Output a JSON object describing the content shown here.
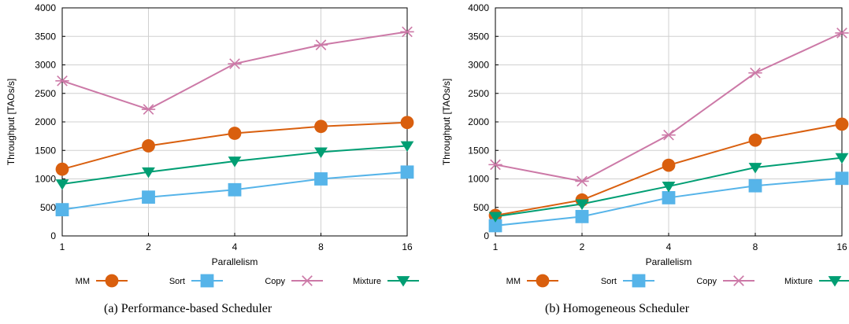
{
  "charts": [
    {
      "caption": "(a)  Performance-based Scheduler",
      "chart_data": {
        "type": "line",
        "title": "",
        "xlabel": "Parallelism",
        "ylabel": "Throughput [TAOs/s]",
        "x": [
          "1",
          "2",
          "4",
          "8",
          "16"
        ],
        "ylim": [
          0,
          4000
        ],
        "yticks": [
          0,
          500,
          1000,
          1500,
          2000,
          2500,
          3000,
          3500,
          4000
        ],
        "grid": true,
        "legend": "bottom",
        "series": [
          {
            "name": "MM",
            "marker": "circle",
            "color": "#d95f0e",
            "values": [
              1170,
              1580,
              1800,
              1920,
              1990
            ]
          },
          {
            "name": "Sort",
            "marker": "square",
            "color": "#56b4e9",
            "values": [
              460,
              680,
              810,
              1000,
              1120
            ]
          },
          {
            "name": "Copy",
            "marker": "star",
            "color": "#cc79a7",
            "values": [
              2720,
              2220,
              3020,
              3350,
              3580
            ]
          },
          {
            "name": "Mixture",
            "marker": "triangle-down",
            "color": "#009e73",
            "values": [
              910,
              1120,
              1310,
              1470,
              1580
            ]
          }
        ]
      }
    },
    {
      "caption": "(b)  Homogeneous Scheduler",
      "chart_data": {
        "type": "line",
        "title": "",
        "xlabel": "Parallelism",
        "ylabel": "Throughput [TAOs/s]",
        "x": [
          "1",
          "2",
          "4",
          "8",
          "16"
        ],
        "ylim": [
          0,
          4000
        ],
        "yticks": [
          0,
          500,
          1000,
          1500,
          2000,
          2500,
          3000,
          3500,
          4000
        ],
        "grid": true,
        "legend": "bottom",
        "series": [
          {
            "name": "MM",
            "marker": "circle",
            "color": "#d95f0e",
            "values": [
              360,
              630,
              1240,
              1680,
              1960
            ]
          },
          {
            "name": "Sort",
            "marker": "square",
            "color": "#56b4e9",
            "values": [
              180,
              340,
              670,
              880,
              1010
            ]
          },
          {
            "name": "Copy",
            "marker": "star",
            "color": "#cc79a7",
            "values": [
              1250,
              960,
              1770,
              2860,
              3560
            ]
          },
          {
            "name": "Mixture",
            "marker": "triangle-down",
            "color": "#009e73",
            "values": [
              340,
              560,
              870,
              1200,
              1370
            ]
          }
        ]
      }
    }
  ]
}
